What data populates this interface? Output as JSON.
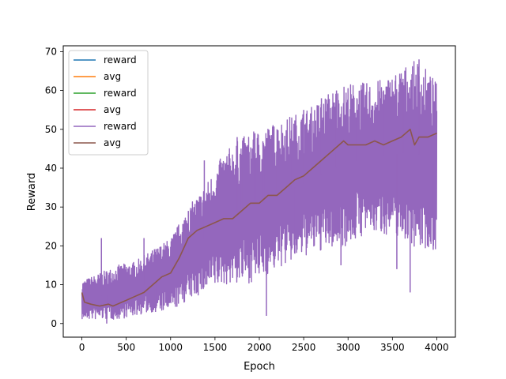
{
  "chart_data": {
    "type": "line",
    "title": "",
    "xlabel": "Epoch",
    "ylabel": "Reward",
    "xlim": [
      -210,
      4210
    ],
    "ylim": [
      -3.5,
      71.5
    ],
    "xticks": [
      0,
      500,
      1000,
      1500,
      2000,
      2500,
      3000,
      3500,
      4000
    ],
    "yticks": [
      0,
      10,
      20,
      30,
      40,
      50,
      60,
      70
    ],
    "grid": false,
    "legend_position": "top-left",
    "legend": [
      {
        "label": "reward",
        "color": "#1f77b4"
      },
      {
        "label": "avg",
        "color": "#ff7f0e"
      },
      {
        "label": "reward",
        "color": "#2ca02c"
      },
      {
        "label": "avg",
        "color": "#d62728"
      },
      {
        "label": "reward",
        "color": "#9467bd"
      },
      {
        "label": "avg",
        "color": "#8c564b"
      }
    ],
    "reward_band": {
      "color": "#9467bd",
      "x": [
        0,
        200,
        400,
        600,
        800,
        1000,
        1200,
        1400,
        1600,
        1800,
        2000,
        2200,
        2400,
        2600,
        2800,
        3000,
        3200,
        3400,
        3600,
        3800,
        4000
      ],
      "low": [
        1,
        1,
        1,
        2,
        3,
        3,
        6,
        8,
        10,
        10,
        11,
        14,
        16,
        18,
        19,
        20,
        23,
        23,
        22,
        19,
        19
      ],
      "high": [
        11,
        13,
        15,
        16,
        19,
        22,
        30,
        36,
        44,
        48,
        50,
        52,
        54,
        56,
        60,
        62,
        62,
        63,
        66,
        68,
        62
      ]
    },
    "reward_spikes": {
      "color": "#9467bd",
      "x": [
        70,
        220,
        280,
        700,
        830,
        1200,
        1380,
        1750,
        1800,
        1950,
        2050,
        2080,
        2200,
        2350,
        2400,
        2500,
        2700,
        2870,
        2920,
        3100,
        3400,
        3550,
        3620,
        3700,
        3800,
        3960
      ],
      "y": [
        3,
        22,
        0,
        22,
        3,
        29,
        42,
        48,
        40,
        49,
        46,
        2,
        50,
        43,
        18,
        55,
        58,
        60,
        15,
        58,
        60,
        14,
        63,
        8,
        68,
        19
      ]
    },
    "avg_series": {
      "color": "#8c564b",
      "x": [
        0,
        30,
        100,
        200,
        300,
        350,
        400,
        500,
        600,
        700,
        800,
        900,
        1000,
        1100,
        1200,
        1300,
        1400,
        1500,
        1600,
        1700,
        1800,
        1900,
        2000,
        2100,
        2200,
        2300,
        2400,
        2500,
        2600,
        2700,
        2800,
        2900,
        2950,
        3000,
        3100,
        3200,
        3300,
        3400,
        3500,
        3600,
        3700,
        3750,
        3800,
        3900,
        4000
      ],
      "y": [
        8,
        5.5,
        5,
        4.5,
        5,
        4.5,
        5,
        6,
        7,
        8,
        10,
        12,
        13,
        17,
        22,
        24,
        25,
        26,
        27,
        27,
        29,
        31,
        31,
        33,
        33,
        35,
        37,
        38,
        40,
        42,
        44,
        46,
        47,
        46,
        46,
        46,
        47,
        46,
        47,
        48,
        50,
        46,
        48,
        48,
        49
      ]
    }
  }
}
